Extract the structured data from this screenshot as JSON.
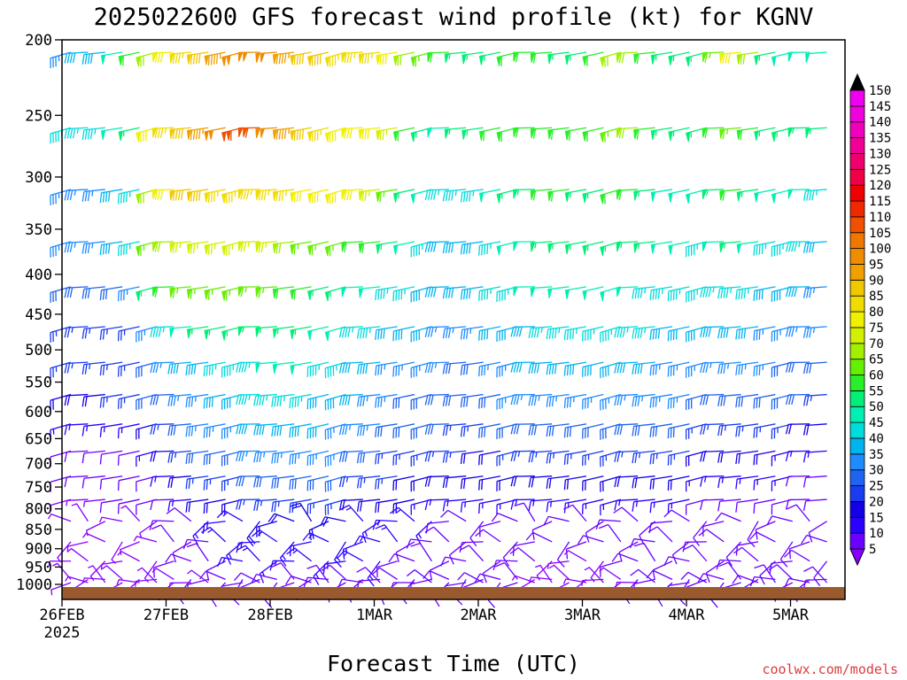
{
  "chart_data": {
    "type": "wind_barbs",
    "title": "2025022600 GFS forecast wind profile (kt) for KGNV",
    "xlabel": "Forecast Time (UTC)",
    "x_ticks": [
      "26FEB",
      "27FEB",
      "28FEB",
      "1MAR",
      "2MAR",
      "3MAR",
      "4MAR",
      "5MAR"
    ],
    "x_year_label": "2025",
    "y_ticks": [
      200,
      250,
      300,
      350,
      400,
      450,
      500,
      550,
      600,
      650,
      700,
      750,
      800,
      850,
      900,
      950,
      1000
    ],
    "y_axis_scale": "log-pressure, inverted",
    "colorbar_levels": [
      5,
      10,
      15,
      20,
      25,
      30,
      35,
      40,
      45,
      50,
      55,
      60,
      65,
      70,
      75,
      80,
      85,
      90,
      95,
      100,
      105,
      110,
      115,
      120,
      125,
      130,
      135,
      140,
      145,
      150
    ],
    "colorbar_colors": [
      "#8a00ff",
      "#6a00ff",
      "#2a00ff",
      "#1400e6",
      "#1a3cf0",
      "#1e64f0",
      "#1e8cff",
      "#00b4f0",
      "#00dcdc",
      "#00f0b4",
      "#00f078",
      "#28f028",
      "#64f000",
      "#a0f000",
      "#d2f000",
      "#f0f000",
      "#f0dc00",
      "#f0c800",
      "#f0a000",
      "#f08c00",
      "#f07800",
      "#f05000",
      "#f02800",
      "#f00000",
      "#f00046",
      "#f0006e",
      "#f00096",
      "#f000be",
      "#f000dc",
      "#f000f0"
    ],
    "wind_speed_kt_by_level": {
      "200": [
        35,
        40,
        40,
        50,
        60,
        70,
        80,
        85,
        90,
        95,
        100,
        100,
        100,
        95,
        90,
        90,
        85,
        85,
        85,
        80,
        70,
        65,
        60,
        55,
        55,
        55,
        60,
        60,
        60,
        55,
        55,
        60,
        70,
        70,
        60,
        55,
        55,
        55,
        65,
        80,
        70,
        55,
        50,
        50,
        50,
        55
      ],
      "250": [
        45,
        45,
        45,
        50,
        55,
        80,
        85,
        90,
        95,
        100,
        110,
        110,
        100,
        95,
        90,
        85,
        80,
        80,
        80,
        75,
        60,
        55,
        50,
        55,
        55,
        60,
        60,
        60,
        60,
        60,
        60,
        60,
        65,
        70,
        60,
        55,
        55,
        55,
        60,
        65,
        60,
        55,
        55,
        55,
        55,
        50
      ],
      "300": [
        35,
        35,
        35,
        40,
        45,
        70,
        80,
        90,
        90,
        85,
        85,
        85,
        85,
        85,
        80,
        80,
        80,
        80,
        75,
        65,
        55,
        50,
        45,
        45,
        45,
        50,
        55,
        55,
        60,
        60,
        55,
        55,
        60,
        60,
        55,
        50,
        50,
        50,
        55,
        60,
        55,
        50,
        50,
        50,
        45,
        45
      ],
      "350": [
        35,
        35,
        35,
        40,
        45,
        65,
        70,
        75,
        75,
        75,
        75,
        75,
        75,
        70,
        65,
        65,
        65,
        60,
        60,
        55,
        50,
        45,
        40,
        40,
        40,
        45,
        50,
        50,
        55,
        55,
        55,
        55,
        55,
        55,
        55,
        50,
        50,
        45,
        50,
        55,
        50,
        45,
        45,
        45,
        40,
        40
      ],
      "400": [
        30,
        30,
        30,
        30,
        35,
        55,
        60,
        65,
        65,
        65,
        65,
        65,
        65,
        60,
        60,
        55,
        55,
        50,
        50,
        45,
        45,
        40,
        40,
        40,
        40,
        45,
        45,
        50,
        50,
        50,
        50,
        50,
        50,
        50,
        45,
        45,
        45,
        45,
        45,
        45,
        45,
        40,
        40,
        40,
        35,
        35
      ],
      "450": [
        25,
        25,
        25,
        25,
        25,
        35,
        45,
        50,
        55,
        55,
        55,
        55,
        55,
        55,
        55,
        50,
        50,
        45,
        45,
        40,
        40,
        40,
        35,
        35,
        35,
        40,
        40,
        40,
        45,
        45,
        45,
        45,
        45,
        45,
        45,
        40,
        40,
        40,
        40,
        40,
        40,
        35,
        35,
        35,
        35,
        30
      ],
      "500": [
        25,
        25,
        25,
        25,
        25,
        30,
        35,
        40,
        40,
        45,
        45,
        45,
        50,
        50,
        50,
        45,
        45,
        40,
        40,
        35,
        35,
        35,
        35,
        30,
        30,
        35,
        35,
        40,
        40,
        40,
        40,
        40,
        40,
        40,
        40,
        35,
        35,
        35,
        35,
        35,
        35,
        35,
        30,
        30,
        30,
        30
      ],
      "550": [
        20,
        20,
        20,
        25,
        25,
        30,
        30,
        35,
        35,
        40,
        40,
        45,
        45,
        45,
        45,
        40,
        40,
        40,
        35,
        35,
        30,
        30,
        30,
        30,
        30,
        30,
        35,
        35,
        35,
        35,
        35,
        35,
        35,
        35,
        35,
        35,
        35,
        30,
        30,
        30,
        30,
        30,
        30,
        30,
        25,
        25
      ],
      "600": [
        15,
        15,
        15,
        15,
        15,
        20,
        25,
        30,
        35,
        35,
        35,
        40,
        40,
        40,
        40,
        40,
        35,
        35,
        35,
        30,
        30,
        30,
        30,
        25,
        25,
        30,
        30,
        30,
        30,
        30,
        30,
        30,
        30,
        30,
        30,
        30,
        30,
        25,
        25,
        25,
        25,
        25,
        25,
        20,
        20,
        20
      ],
      "650": [
        10,
        10,
        10,
        10,
        10,
        15,
        20,
        25,
        30,
        30,
        30,
        35,
        35,
        35,
        35,
        35,
        35,
        30,
        30,
        25,
        25,
        25,
        25,
        25,
        20,
        20,
        25,
        25,
        25,
        25,
        25,
        25,
        25,
        25,
        25,
        25,
        25,
        20,
        20,
        20,
        20,
        20,
        15,
        15,
        15,
        15
      ],
      "700": [
        10,
        10,
        10,
        10,
        10,
        10,
        15,
        20,
        25,
        25,
        25,
        30,
        30,
        30,
        30,
        30,
        30,
        25,
        25,
        25,
        20,
        20,
        20,
        20,
        20,
        20,
        20,
        20,
        20,
        20,
        20,
        20,
        20,
        20,
        20,
        20,
        20,
        15,
        15,
        15,
        15,
        15,
        15,
        10,
        10,
        10
      ],
      "750": [
        5,
        5,
        5,
        10,
        10,
        10,
        10,
        15,
        20,
        20,
        20,
        25,
        25,
        25,
        25,
        25,
        25,
        20,
        20,
        20,
        20,
        15,
        15,
        15,
        15,
        15,
        15,
        15,
        15,
        15,
        15,
        15,
        15,
        15,
        15,
        15,
        15,
        10,
        10,
        10,
        10,
        10,
        10,
        10,
        10,
        10
      ],
      "800": [
        5,
        5,
        5,
        5,
        5,
        5,
        10,
        10,
        15,
        15,
        15,
        20,
        20,
        20,
        20,
        20,
        20,
        15,
        15,
        15,
        15,
        15,
        10,
        10,
        10,
        10,
        10,
        10,
        10,
        10,
        10,
        10,
        10,
        10,
        10,
        10,
        10,
        10,
        10,
        10,
        10,
        10,
        10,
        10,
        10,
        10
      ],
      "850": [
        5,
        5,
        5,
        5,
        5,
        5,
        10,
        10,
        10,
        15,
        15,
        15,
        15,
        15,
        15,
        15,
        15,
        15,
        15,
        15,
        10,
        10,
        10,
        10,
        10,
        10,
        10,
        10,
        10,
        10,
        10,
        10,
        10,
        10,
        10,
        10,
        10,
        10,
        10,
        10,
        10,
        10,
        10,
        10,
        10,
        10
      ],
      "900": [
        5,
        5,
        5,
        5,
        5,
        5,
        10,
        10,
        10,
        10,
        15,
        15,
        15,
        15,
        15,
        15,
        15,
        15,
        15,
        10,
        10,
        10,
        10,
        10,
        10,
        10,
        10,
        10,
        5,
        5,
        5,
        5,
        10,
        10,
        10,
        10,
        10,
        10,
        10,
        10,
        10,
        10,
        10,
        10,
        10,
        15
      ],
      "950": [
        5,
        5,
        5,
        5,
        5,
        5,
        5,
        10,
        10,
        10,
        10,
        10,
        10,
        10,
        10,
        10,
        10,
        10,
        10,
        10,
        10,
        10,
        10,
        10,
        10,
        10,
        10,
        5,
        5,
        5,
        5,
        5,
        5,
        10,
        10,
        10,
        10,
        10,
        10,
        10,
        10,
        10,
        10,
        10,
        10,
        15
      ],
      "1000": [
        5,
        5,
        5,
        5,
        5,
        5,
        5,
        5,
        5,
        10,
        10,
        10,
        10,
        10,
        10,
        10,
        10,
        10,
        10,
        10,
        10,
        10,
        10,
        10,
        10,
        10,
        10,
        5,
        5,
        5,
        5,
        5,
        5,
        5,
        10,
        10,
        10,
        10,
        10,
        10,
        10,
        10,
        10,
        10,
        10,
        10
      ]
    }
  },
  "credit": "coolwx.com/models"
}
